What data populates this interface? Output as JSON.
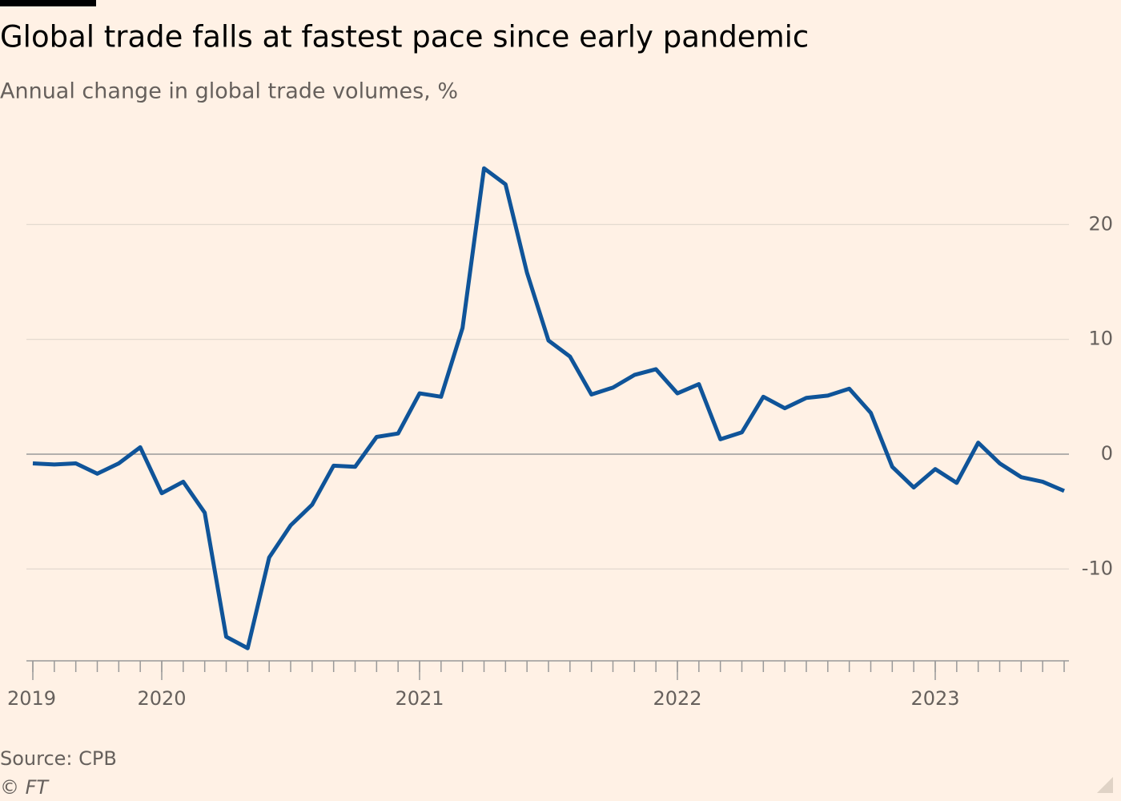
{
  "chart_data": {
    "type": "line",
    "title": "Global trade falls at fastest pace since early pandemic",
    "subtitle": "Annual change in global trade volumes, %",
    "source": "Source: CPB",
    "credit": "© FT",
    "x": [
      "2019-07",
      "2019-08",
      "2019-09",
      "2019-10",
      "2019-11",
      "2019-12",
      "2020-01",
      "2020-02",
      "2020-03",
      "2020-04",
      "2020-05",
      "2020-06",
      "2020-07",
      "2020-08",
      "2020-09",
      "2020-10",
      "2020-11",
      "2020-12",
      "2021-01",
      "2021-02",
      "2021-03",
      "2021-04",
      "2021-05",
      "2021-06",
      "2021-07",
      "2021-08",
      "2021-09",
      "2021-10",
      "2021-11",
      "2021-12",
      "2022-01",
      "2022-02",
      "2022-03",
      "2022-04",
      "2022-05",
      "2022-06",
      "2022-07",
      "2022-08",
      "2022-09",
      "2022-10",
      "2022-11",
      "2022-12",
      "2023-01",
      "2023-02",
      "2023-03",
      "2023-04",
      "2023-05",
      "2023-06",
      "2023-07"
    ],
    "series": [
      {
        "color": "#0f5499",
        "values": [
          -0.8,
          -0.9,
          -0.8,
          -1.7,
          -0.8,
          0.6,
          -3.4,
          -2.4,
          -5.1,
          -15.9,
          -16.9,
          -9.0,
          -6.2,
          -4.4,
          -1.0,
          -1.1,
          1.5,
          1.8,
          5.3,
          5.0,
          11.0,
          24.9,
          23.5,
          15.8,
          9.9,
          8.5,
          5.2,
          5.8,
          6.9,
          7.4,
          5.3,
          6.1,
          1.3,
          1.9,
          5.0,
          4.0,
          4.9,
          5.1,
          5.7,
          3.6,
          -1.1,
          -2.9,
          -1.3,
          -2.5,
          1.0,
          -0.8,
          -2.0,
          -2.4,
          -3.2
        ]
      }
    ],
    "xlim": [
      "2019-07",
      "2023-07"
    ],
    "xticks": [
      {
        "value": "2019-07",
        "label": "2019"
      },
      {
        "value": "2020-01",
        "label": "2020"
      },
      {
        "value": "2021-01",
        "label": "2021"
      },
      {
        "value": "2022-01",
        "label": "2022"
      },
      {
        "value": "2023-01",
        "label": "2023"
      }
    ],
    "ylim": [
      -18,
      27
    ],
    "yticks": [
      -10,
      0,
      10,
      20
    ],
    "grid": true
  }
}
